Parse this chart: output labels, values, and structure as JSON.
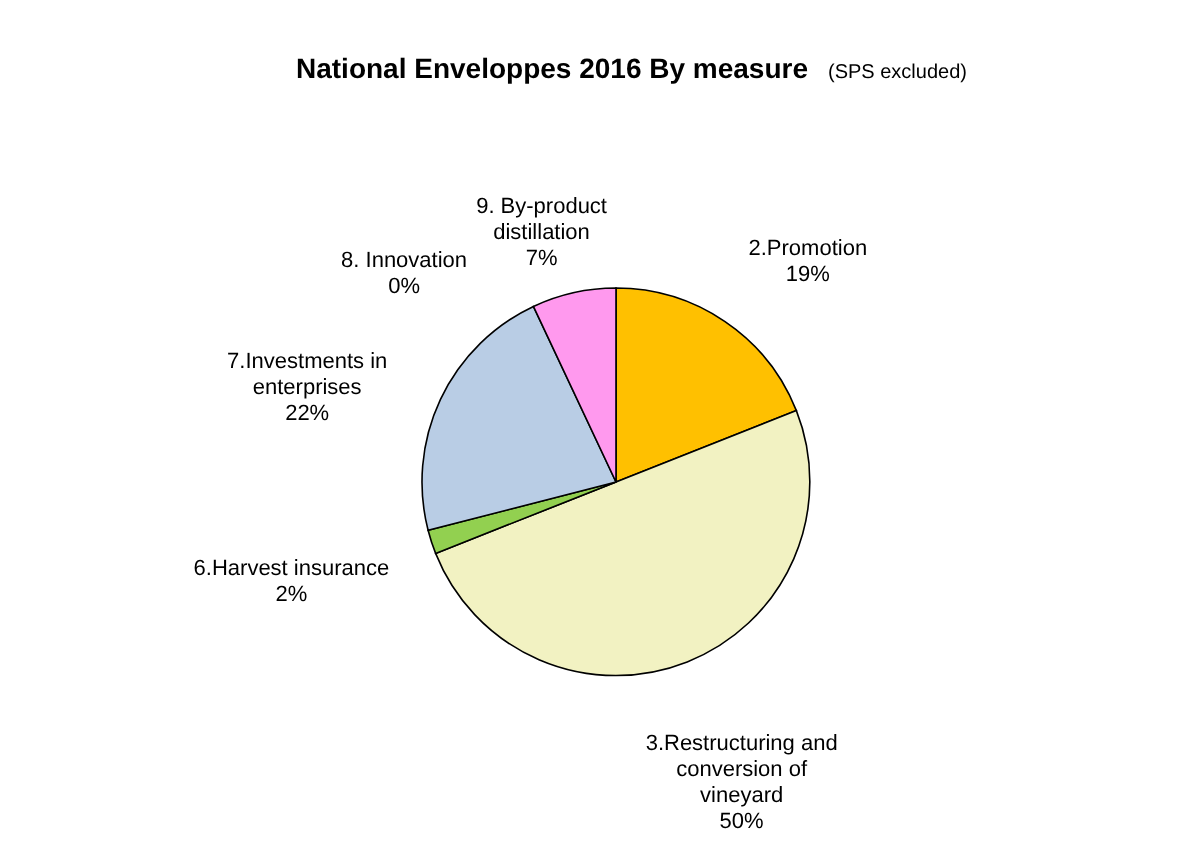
{
  "chart_data": {
    "type": "pie",
    "title": "National Enveloppes 2016  By measure",
    "subtitle": "(SPS  excluded)",
    "categories": [
      "2.Promotion",
      "3.Restructuring and\nconversion of\nvineyard",
      "6.Harvest insurance",
      "7.Investments in\nenterprises",
      "8. Innovation",
      "9. By-product\ndistillation"
    ],
    "values": [
      19,
      50,
      2,
      22,
      0,
      7
    ],
    "value_labels": [
      "19%",
      "50%",
      "2%",
      "22%",
      "0%",
      "7%"
    ],
    "colors": [
      "#ffc000",
      "#f2f2c2",
      "#92d050",
      "#b9cde5",
      "#000000",
      "#ff99ee"
    ]
  }
}
